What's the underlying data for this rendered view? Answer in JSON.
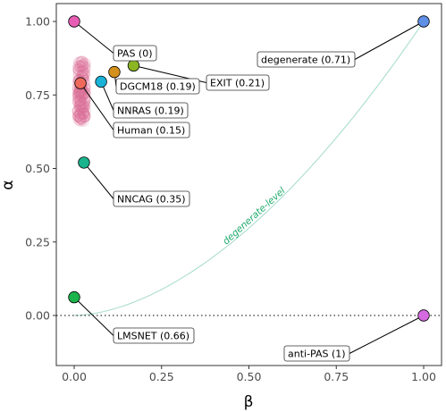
{
  "chart_data": {
    "type": "scatter",
    "xlabel": "β",
    "ylabel": "α",
    "xlim": [
      0,
      1
    ],
    "ylim": [
      0,
      1
    ],
    "x_ticks": [
      "0.00",
      "0.25",
      "0.50",
      "0.75",
      "1.00"
    ],
    "y_ticks": [
      "0.00",
      "0.25",
      "0.50",
      "0.75",
      "1.00"
    ],
    "grid": false,
    "reference_line": {
      "y": 0,
      "style": "dotted"
    },
    "curve": {
      "label": "degenerate-level",
      "color": "#66c2a5",
      "from": [
        0,
        0
      ],
      "to": [
        1,
        1
      ]
    },
    "points": [
      {
        "label": "PAS (0)",
        "x": 0.0,
        "y": 1.0,
        "color": "#e75fb5"
      },
      {
        "label": "EXIT (0.21)",
        "x": 0.17,
        "y": 0.85,
        "color": "#8bb523"
      },
      {
        "label": "DGCM18 (0.19)",
        "x": 0.115,
        "y": 0.828,
        "color": "#d4901c"
      },
      {
        "label": "NNRAS (0.19)",
        "x": 0.077,
        "y": 0.795,
        "color": "#1ab2d6"
      },
      {
        "label": "Human (0.15)",
        "x": 0.018,
        "y": 0.79,
        "color": "#f06a5b"
      },
      {
        "label": "NNCAG (0.35)",
        "x": 0.028,
        "y": 0.52,
        "color": "#19b38c"
      },
      {
        "label": "LMSNET (0.66)",
        "x": 0.0,
        "y": 0.062,
        "color": "#1bb34c"
      },
      {
        "label": "degenerate (0.71)",
        "x": 1.0,
        "y": 1.0,
        "color": "#5f8fe6"
      },
      {
        "label": "anti-PAS (1)",
        "x": 1.0,
        "y": 0.0,
        "color": "#d66ae0"
      }
    ],
    "human_cloud": {
      "x_range": [
        0.0,
        0.04
      ],
      "y_range": [
        0.66,
        0.87
      ],
      "color": "#e87fa8"
    }
  }
}
